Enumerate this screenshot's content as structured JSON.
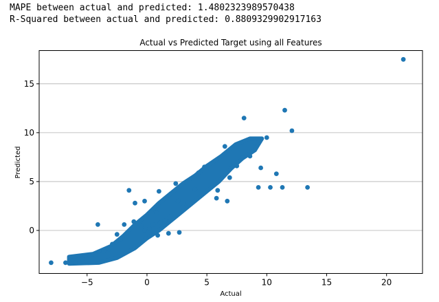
{
  "stats": {
    "mape_line": "MAPE between actual and predicted: 1.4802323989570438",
    "r2_line": "R-Squared between actual and predicted: 0.8809329902917163"
  },
  "chart_data": {
    "type": "scatter",
    "title": "Actual vs Predicted Target using all Features",
    "xlabel": "Actual",
    "ylabel": "Predicted",
    "xlim": [
      -9.0,
      23.0
    ],
    "ylim": [
      -4.4,
      18.4
    ],
    "xticks": [
      -5,
      0,
      5,
      10,
      15,
      20
    ],
    "yticks": [
      0,
      5,
      10,
      15
    ],
    "grid": "horizontal",
    "marker_color": "#1f77b4",
    "points": [
      [
        21.4,
        17.5
      ],
      [
        13.4,
        4.4
      ],
      [
        12.1,
        10.2
      ],
      [
        11.5,
        12.3
      ],
      [
        11.3,
        4.4
      ],
      [
        10.8,
        5.8
      ],
      [
        10.3,
        4.4
      ],
      [
        10.0,
        9.5
      ],
      [
        9.5,
        6.4
      ],
      [
        9.3,
        4.4
      ],
      [
        9.0,
        9.0
      ],
      [
        8.6,
        7.6
      ],
      [
        8.1,
        11.5
      ],
      [
        8.0,
        7.5
      ],
      [
        7.5,
        6.6
      ],
      [
        7.2,
        7.0
      ],
      [
        6.9,
        5.4
      ],
      [
        6.7,
        3.0
      ],
      [
        6.5,
        8.6
      ],
      [
        5.9,
        4.1
      ],
      [
        5.8,
        3.3
      ],
      [
        4.8,
        6.5
      ],
      [
        4.3,
        5.9
      ],
      [
        4.0,
        4.2
      ],
      [
        3.4,
        2.8
      ],
      [
        3.0,
        2.4
      ],
      [
        2.6,
        3.0
      ],
      [
        2.3,
        1.6
      ],
      [
        1.9,
        1.4
      ],
      [
        1.5,
        1.0
      ],
      [
        1.1,
        0.8
      ],
      [
        0.8,
        1.8
      ],
      [
        0.5,
        0.6
      ],
      [
        0.2,
        0.2
      ],
      [
        -0.2,
        0.0
      ],
      [
        -0.5,
        0.5
      ],
      [
        -0.8,
        0.3
      ],
      [
        -1.1,
        0.9
      ],
      [
        -1.5,
        4.1
      ],
      [
        -1.9,
        0.6
      ],
      [
        -2.2,
        -0.9
      ],
      [
        -2.5,
        -0.4
      ],
      [
        -2.9,
        -1.4
      ],
      [
        -3.2,
        -1.9
      ],
      [
        -3.6,
        -2.1
      ],
      [
        -4.1,
        0.6
      ],
      [
        -4.3,
        -2.5
      ],
      [
        -4.8,
        -2.5
      ],
      [
        -5.4,
        -2.9
      ],
      [
        -6.0,
        -3.3
      ],
      [
        -6.8,
        -3.3
      ],
      [
        -8.0,
        -3.3
      ],
      [
        2.4,
        4.8
      ],
      [
        2.7,
        -0.2
      ],
      [
        1.0,
        4.0
      ],
      [
        -1.0,
        2.8
      ],
      [
        -0.2,
        3.0
      ],
      [
        -0.1,
        -0.8
      ],
      [
        0.9,
        -0.5
      ],
      [
        1.8,
        -0.3
      ]
    ]
  }
}
